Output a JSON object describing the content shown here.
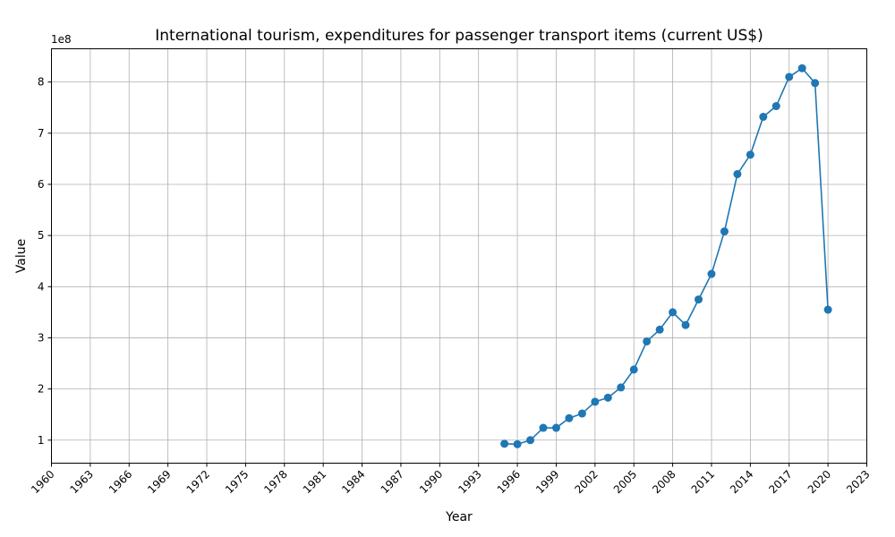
{
  "chart_data": {
    "type": "line",
    "title": "International tourism, expenditures for passenger transport items (current US$)",
    "xlabel": "Year",
    "ylabel": "Value",
    "y_scale_label": "1e8",
    "y_multiplier": 100000000,
    "xlim": [
      1960,
      2023
    ],
    "ylim": [
      55000000,
      865000000
    ],
    "x_ticks": [
      1960,
      1963,
      1966,
      1969,
      1972,
      1975,
      1978,
      1981,
      1984,
      1987,
      1990,
      1993,
      1996,
      1999,
      2002,
      2005,
      2008,
      2011,
      2014,
      2017,
      2020,
      2023
    ],
    "x_tick_labels": [
      "1960",
      "1963",
      "1966",
      "1969",
      "1972",
      "1975",
      "1978",
      "1981",
      "1984",
      "1987",
      "1990",
      "1993",
      "1996",
      "1999",
      "2002",
      "2005",
      "2008",
      "2011",
      "2014",
      "2017",
      "2020",
      "2023"
    ],
    "y_ticks": [
      100000000,
      200000000,
      300000000,
      400000000,
      500000000,
      600000000,
      700000000,
      800000000
    ],
    "y_tick_labels": [
      "1",
      "2",
      "3",
      "4",
      "5",
      "6",
      "7",
      "8"
    ],
    "grid": true,
    "color": "#1f77b4",
    "marker": "circle",
    "x": [
      1995,
      1996,
      1997,
      1998,
      1999,
      2000,
      2001,
      2002,
      2003,
      2004,
      2005,
      2006,
      2007,
      2008,
      2009,
      2010,
      2011,
      2012,
      2013,
      2014,
      2015,
      2016,
      2017,
      2018,
      2019,
      2020
    ],
    "y": [
      93000000,
      92000000,
      100000000,
      124000000,
      124000000,
      143000000,
      152000000,
      175000000,
      183000000,
      203000000,
      238000000,
      293000000,
      316000000,
      350000000,
      325000000,
      375000000,
      425000000,
      508000000,
      620000000,
      658000000,
      732000000,
      753000000,
      810000000,
      827000000,
      798000000,
      355000000
    ]
  }
}
